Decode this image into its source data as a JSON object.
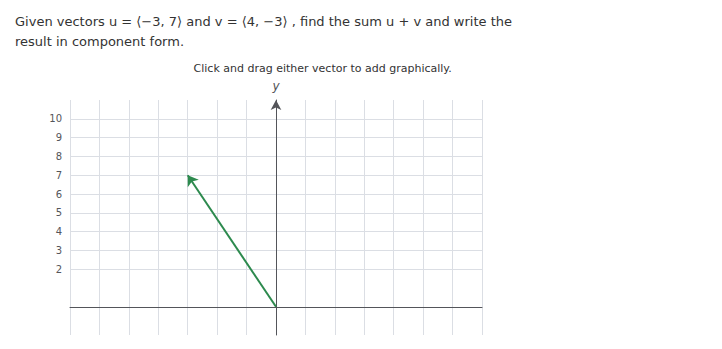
{
  "chart_data": {
    "type": "line",
    "title": "Given vectors u = ⟨−3, 7⟩ and v = ⟨4, −3⟩ , find the sum u + v and write the\nresult in component form.",
    "subtitle": "Click and drag either vector to add graphically.",
    "ylabel": "y",
    "series": [
      {
        "color": "#2d8a4e",
        "marker": "arrow",
        "x": [
          0,
          -3
        ],
        "values": [
          0,
          7
        ]
      }
    ],
    "xlim": [
      -7,
      7
    ],
    "xticks": [
      -7,
      -6,
      -5,
      -4,
      -3,
      -2,
      -1,
      0,
      1,
      2,
      3,
      4,
      5,
      6,
      7
    ],
    "ylim": [
      -1.5,
      11
    ],
    "yticks": [
      2,
      3,
      4,
      5,
      6,
      7,
      8,
      9,
      10
    ],
    "tick_labels": "y",
    "grid": true
  }
}
